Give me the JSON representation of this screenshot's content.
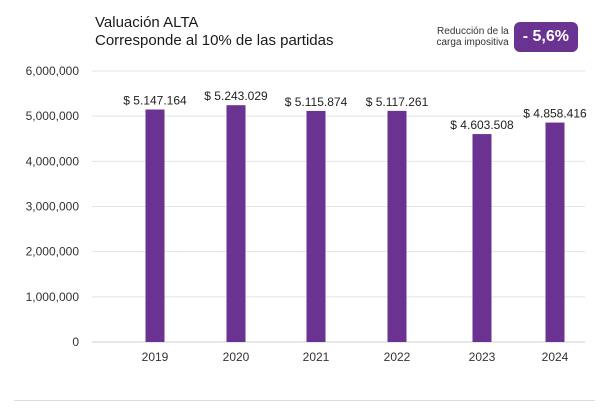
{
  "header": {
    "title": "Valuación ALTA",
    "subtitle": "Corresponde al 10% de las partidas"
  },
  "badge": {
    "caption_line1": "Reducción de la",
    "caption_line2": "carga impositiva",
    "value": "- 5,6%"
  },
  "colors": {
    "bar": "#6a3291",
    "grid": "#e3e3e3",
    "badge": "#6a3291"
  },
  "chart_data": {
    "type": "bar",
    "title": "Valuación ALTA",
    "subtitle": "Corresponde al 10% de las partidas",
    "categories": [
      "2019",
      "2020",
      "2021",
      "2022",
      "2023",
      "2024"
    ],
    "values": [
      5147164,
      5243029,
      5115874,
      5117261,
      4603508,
      4858416
    ],
    "data_labels": [
      "$ 5.147.164",
      "$ 5.243.029",
      "$ 5.115.874",
      "$ 5.117.261",
      "$ 4.603.508",
      "$ 4.858.416"
    ],
    "ylim": [
      0,
      6000000
    ],
    "yticks": [
      0,
      1000000,
      2000000,
      3000000,
      4000000,
      5000000,
      6000000
    ],
    "ytick_labels": [
      "0",
      "1,000,000",
      "2,000,000",
      "3,000,000",
      "4,000,000",
      "5,000,000",
      "6,000,000"
    ],
    "grid": true,
    "legend": "none",
    "xlabel": "",
    "ylabel": ""
  }
}
